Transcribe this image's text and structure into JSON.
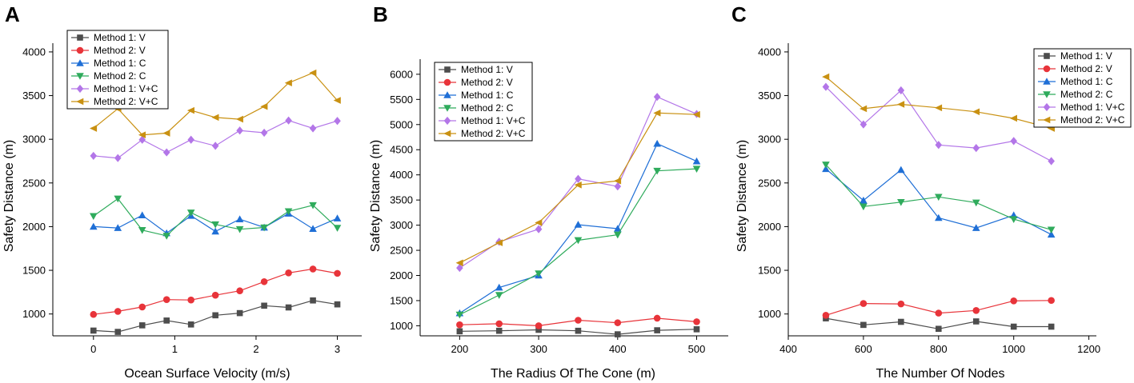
{
  "colors": {
    "Method 1: V": "#4d4d4d",
    "Method 2: V": "#e8343a",
    "Method 1: C": "#1f6fd6",
    "Method 2: C": "#2fab5c",
    "Method 1: V+C": "#b376e8",
    "Method 2: V+C": "#c99112"
  },
  "markers": {
    "Method 1: V": "square",
    "Method 2: V": "circle",
    "Method 1: C": "triangle-up",
    "Method 2: C": "triangle-down",
    "Method 1: V+C": "diamond",
    "Method 2: V+C": "triangle-left"
  },
  "chart_data": [
    {
      "panel": "A",
      "type": "line",
      "xlabel": "Ocean Surface Velocity (m/s)",
      "ylabel": "Safety Distance (m)",
      "xlim": [
        -0.5,
        3.3
      ],
      "ylim": [
        750,
        4100
      ],
      "xticks": [
        0,
        1,
        2,
        3
      ],
      "yticks": [
        1000,
        1500,
        2000,
        2500,
        3000,
        3500,
        4000
      ],
      "legend_position": "top-left",
      "x": [
        0,
        0.3,
        0.6,
        0.9,
        1.2,
        1.5,
        1.8,
        2.1,
        2.4,
        2.7,
        3.0
      ],
      "series": [
        {
          "name": "Method 1: V",
          "values": [
            810,
            795,
            870,
            925,
            880,
            985,
            1010,
            1095,
            1075,
            1155,
            1110
          ]
        },
        {
          "name": "Method 2: V",
          "values": [
            995,
            1030,
            1080,
            1165,
            1160,
            1215,
            1265,
            1370,
            1470,
            1515,
            1465
          ]
        },
        {
          "name": "Method 1: C",
          "values": [
            2000,
            1985,
            2130,
            1925,
            2125,
            1945,
            2085,
            1990,
            2150,
            1975,
            2095
          ]
        },
        {
          "name": "Method 2: C",
          "values": [
            2120,
            2320,
            1960,
            1895,
            2160,
            2025,
            1970,
            1990,
            2175,
            2245,
            1985
          ]
        },
        {
          "name": "Method 1: V+C",
          "values": [
            2810,
            2785,
            2995,
            2850,
            2995,
            2925,
            3100,
            3075,
            3215,
            3125,
            3210
          ]
        },
        {
          "name": "Method 2: V+C",
          "values": [
            3125,
            3350,
            3050,
            3070,
            3330,
            3250,
            3230,
            3375,
            3645,
            3760,
            3445
          ]
        }
      ]
    },
    {
      "panel": "B",
      "type": "line",
      "xlabel": "The Radius Of The Cone (m)",
      "ylabel": "Safety Distance (m)",
      "xlim": [
        150,
        540
      ],
      "ylim": [
        800,
        6300
      ],
      "xticks": [
        200,
        300,
        400,
        500
      ],
      "yticks": [
        1000,
        1500,
        2000,
        2500,
        3000,
        3500,
        4000,
        4500,
        5000,
        5500,
        6000
      ],
      "legend_position": "top-left",
      "x": [
        200,
        250,
        300,
        350,
        400,
        450,
        500
      ],
      "series": [
        {
          "name": "Method 1: V",
          "values": [
            890,
            900,
            920,
            900,
            830,
            910,
            930
          ]
        },
        {
          "name": "Method 2: V",
          "values": [
            1020,
            1040,
            1000,
            1110,
            1060,
            1150,
            1080
          ]
        },
        {
          "name": "Method 1: C",
          "values": [
            1250,
            1760,
            2000,
            3010,
            2930,
            4620,
            4270
          ]
        },
        {
          "name": "Method 2: C",
          "values": [
            1220,
            1610,
            2040,
            2700,
            2810,
            4080,
            4120
          ]
        },
        {
          "name": "Method 1: V+C",
          "values": [
            2150,
            2670,
            2920,
            3920,
            3770,
            5550,
            5210
          ]
        },
        {
          "name": "Method 2: V+C",
          "values": [
            2250,
            2650,
            3050,
            3800,
            3880,
            5230,
            5200
          ]
        }
      ]
    },
    {
      "panel": "C",
      "type": "line",
      "xlabel": "The Number Of Nodes",
      "ylabel": "Safety Distance (m)",
      "xlim": [
        400,
        1220
      ],
      "ylim": [
        750,
        4100
      ],
      "xticks": [
        400,
        600,
        800,
        1000,
        1200
      ],
      "yticks": [
        1000,
        1500,
        2000,
        2500,
        3000,
        3500,
        4000
      ],
      "legend_position": "top-right",
      "x": [
        500,
        600,
        700,
        800,
        900,
        1000,
        1100
      ],
      "series": [
        {
          "name": "Method 1: V",
          "values": [
            950,
            875,
            910,
            830,
            915,
            855,
            855
          ]
        },
        {
          "name": "Method 2: V",
          "values": [
            985,
            1120,
            1115,
            1010,
            1040,
            1150,
            1155
          ]
        },
        {
          "name": "Method 1: C",
          "values": [
            2660,
            2300,
            2650,
            2100,
            1985,
            2130,
            1910
          ]
        },
        {
          "name": "Method 2: C",
          "values": [
            2710,
            2230,
            2280,
            2340,
            2275,
            2085,
            1965
          ]
        },
        {
          "name": "Method 1: V+C",
          "values": [
            3600,
            3170,
            3560,
            2935,
            2900,
            2980,
            2750
          ]
        },
        {
          "name": "Method 2: V+C",
          "values": [
            3715,
            3350,
            3400,
            3360,
            3315,
            3240,
            3125
          ]
        }
      ]
    }
  ]
}
